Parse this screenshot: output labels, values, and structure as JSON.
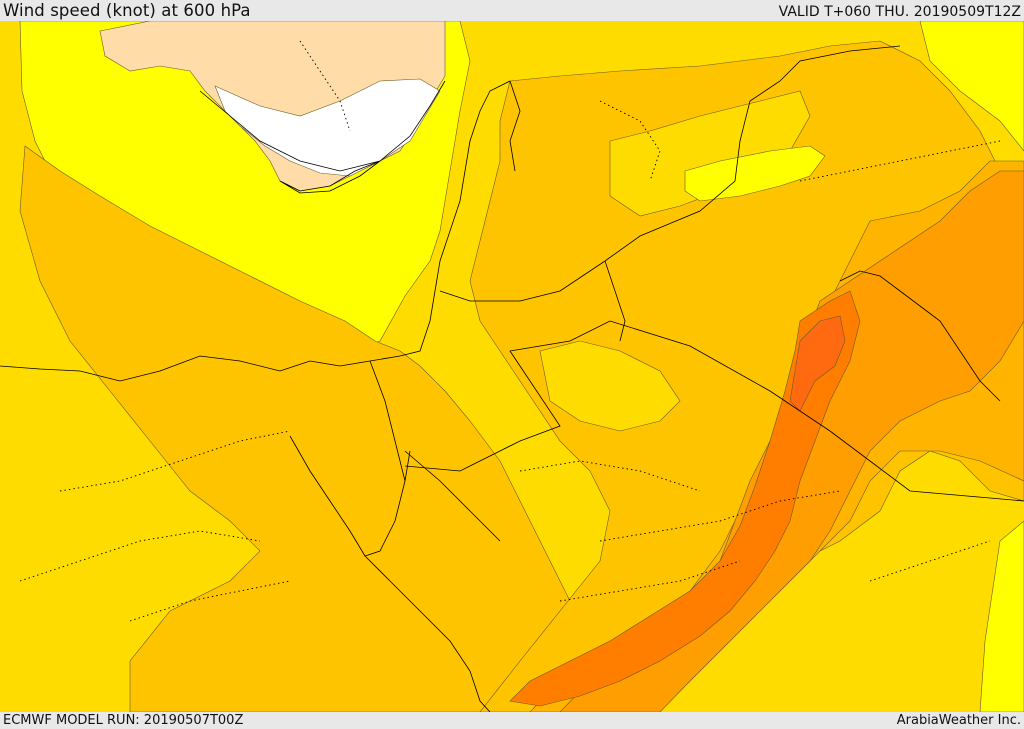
{
  "header": {
    "title": "Wind speed (knot) at 600 hPa",
    "valid": "VALID T+060 THU. 20190509T12Z"
  },
  "footer": {
    "model_run": "ECMWF MODEL RUN: 20190507T00Z",
    "credit": "ArabiaWeather Inc."
  },
  "colors": {
    "band_lowest": "#ffffff",
    "band_low": "#ffdca8",
    "band_1": "#ffff00",
    "band_2": "#ffdc00",
    "band_3": "#ffc400",
    "band_4": "#ffb400",
    "band_5": "#ff9e00",
    "band_6": "#ff7e00",
    "band_7": "#ff6a10",
    "contour": "#6b5a2a",
    "border": "#000000",
    "coast": "#000000"
  }
}
